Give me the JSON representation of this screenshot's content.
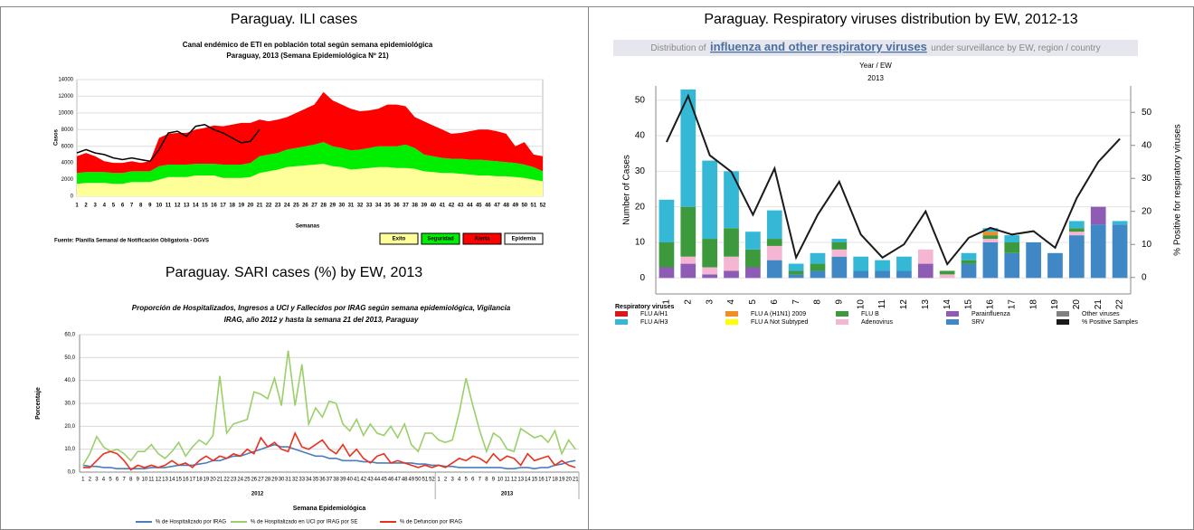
{
  "chart_data": [
    {
      "type": "area",
      "panel_title": "Paraguay. ILI cases",
      "title": "Canal endémico de ETI en población total según semana epidemiológica",
      "subtitle": "Paraguay, 2013 (Semana Epidemiológica Nº 21)",
      "y_label": "Casos",
      "x_label": "Semanas",
      "source": "Fuente: Planilla Semanal de Notificación Obligatoria - DGVS",
      "x": [
        1,
        2,
        3,
        4,
        5,
        6,
        7,
        8,
        9,
        10,
        11,
        12,
        13,
        14,
        15,
        16,
        17,
        18,
        19,
        20,
        21,
        22,
        23,
        24,
        25,
        26,
        27,
        28,
        29,
        30,
        31,
        32,
        33,
        34,
        35,
        36,
        37,
        38,
        39,
        40,
        41,
        42,
        43,
        44,
        45,
        46,
        47,
        48,
        49,
        50,
        51,
        52
      ],
      "ylim": [
        0,
        14000
      ],
      "yticks": [
        0,
        2000,
        4000,
        6000,
        8000,
        10000,
        12000,
        14000
      ],
      "grid": true,
      "series": [
        {
          "name": "Exito",
          "color": "#ffff99",
          "values": [
            1500,
            1600,
            1600,
            1600,
            1500,
            1500,
            1700,
            1700,
            1700,
            2000,
            2300,
            2300,
            2300,
            2500,
            2500,
            2500,
            2200,
            2200,
            2200,
            2300,
            2800,
            3000,
            3200,
            3500,
            3600,
            3700,
            3800,
            3900,
            3600,
            3500,
            3200,
            3300,
            3400,
            3500,
            3500,
            3400,
            3400,
            3300,
            3000,
            2900,
            2800,
            2800,
            2700,
            2600,
            2500,
            2500,
            2400,
            2400,
            2300,
            2200,
            2000,
            1800
          ]
        },
        {
          "name": "Seguridad",
          "color": "#00ee00",
          "values": [
            1300,
            1300,
            1300,
            1300,
            1300,
            1300,
            1300,
            1300,
            1300,
            1600,
            1500,
            1500,
            1500,
            1400,
            1400,
            1400,
            1600,
            1600,
            1600,
            1700,
            2000,
            2000,
            2000,
            2100,
            2200,
            2300,
            2400,
            2600,
            2400,
            2300,
            2300,
            2300,
            2400,
            2500,
            2500,
            2600,
            2800,
            2500,
            2000,
            1900,
            1800,
            1700,
            1800,
            1800,
            1900,
            1800,
            1800,
            1700,
            1700,
            1600,
            1500,
            1200
          ]
        },
        {
          "name": "Alerta",
          "color": "#ff0000",
          "values": [
            2000,
            2300,
            1900,
            1300,
            1200,
            1200,
            1200,
            1000,
            1200,
            3400,
            3700,
            3800,
            3800,
            4100,
            4300,
            4600,
            4600,
            4800,
            5000,
            4800,
            4400,
            4000,
            4000,
            3900,
            4200,
            4500,
            4800,
            6000,
            5500,
            5200,
            5000,
            4600,
            4500,
            4500,
            5000,
            5000,
            4600,
            3700,
            4000,
            3700,
            3400,
            3000,
            3100,
            3400,
            3600,
            3700,
            3600,
            3400,
            2000,
            2700,
            1500,
            1800
          ]
        },
        {
          "name": "Epidemia",
          "color": "#000000",
          "type": "line",
          "values": [
            5200,
            5600,
            5200,
            5000,
            4600,
            4400,
            4600,
            4400,
            4200,
            5600,
            7600,
            7800,
            7200,
            8400,
            8600,
            8000,
            7600,
            7000,
            6400,
            6600,
            8000,
            null,
            null,
            null,
            null,
            null,
            null,
            null,
            null,
            null,
            null,
            null,
            null,
            null,
            null,
            null,
            null,
            null,
            null,
            null,
            null,
            null,
            null,
            null,
            null,
            null,
            null,
            null,
            null,
            null,
            null,
            null
          ]
        }
      ]
    },
    {
      "type": "line",
      "panel_title": "Paraguay. SARI cases (%)  by EW, 2013",
      "title": [
        "Proporción de Hospitalizados, Ingresos a UCI y Fallecidos por IRAG según semana epidemiológica, Vigilancia",
        "IRAG, año 2012 y hasta la semana 21 del 2013, Paraguay"
      ],
      "y_label": "Porcentaje",
      "x_label": "Semana Epidemiológica",
      "categories": [
        1,
        2,
        3,
        4,
        5,
        6,
        7,
        8,
        9,
        10,
        11,
        12,
        13,
        14,
        15,
        16,
        17,
        18,
        19,
        20,
        21,
        22,
        23,
        24,
        25,
        26,
        27,
        28,
        29,
        30,
        31,
        32,
        33,
        34,
        35,
        36,
        37,
        38,
        39,
        40,
        41,
        42,
        43,
        44,
        45,
        46,
        47,
        48,
        49,
        50,
        51,
        52,
        1,
        2,
        3,
        4,
        5,
        6,
        7,
        8,
        9,
        10,
        11,
        12,
        13,
        14,
        15,
        16,
        17,
        18,
        19,
        20,
        21
      ],
      "category_groups": [
        "2012",
        "2013"
      ],
      "ylim": [
        0,
        60
      ],
      "yticks": [
        {
          "value": 0,
          "label": "0,0"
        },
        {
          "value": 10,
          "label": "10,0"
        },
        {
          "value": 20,
          "label": "20,0"
        },
        {
          "value": 30,
          "label": "30,0"
        },
        {
          "value": 40,
          "label": "40,0"
        },
        {
          "value": 50,
          "label": "50,0"
        },
        {
          "value": 60,
          "label": "60,0"
        }
      ],
      "grid": true,
      "series": [
        {
          "name": "% de Hospitalizado por IRAG",
          "color": "#4a7ebb",
          "values": [
            3,
            2.5,
            2.5,
            2,
            2,
            1.5,
            1.5,
            1.5,
            1.5,
            1.5,
            2,
            2,
            2,
            2.5,
            3,
            3,
            3,
            3.5,
            4,
            5,
            5,
            6,
            7,
            7,
            8,
            9,
            10,
            11,
            12,
            11,
            11,
            10,
            9,
            8,
            7,
            7,
            6,
            6,
            5,
            5,
            5,
            4.5,
            4.5,
            4,
            4,
            4,
            4,
            4,
            4,
            3.5,
            3.5,
            3,
            3,
            2.5,
            2.5,
            2,
            2,
            2,
            2,
            2,
            2,
            2,
            1.5,
            1.5,
            2,
            2,
            1.5,
            2,
            2,
            3,
            3.5,
            4.5,
            5
          ]
        },
        {
          "name": "% de Hospitalizado en UCI por IRAG por SE",
          "color": "#9bcf6a",
          "values": [
            3,
            8,
            15.5,
            11,
            9,
            10,
            8,
            5,
            9,
            9,
            12,
            8,
            6,
            9,
            13,
            7,
            11,
            14,
            12,
            16,
            42,
            17,
            21,
            22,
            23,
            35,
            34,
            32,
            41,
            29,
            53,
            29,
            47,
            21,
            28,
            24,
            31,
            30,
            21,
            18,
            23,
            16,
            21,
            17,
            16,
            20,
            15,
            21,
            12,
            9,
            17,
            17,
            14,
            13,
            14,
            26,
            41,
            29,
            18,
            9,
            17,
            15,
            10,
            9,
            19,
            17,
            15,
            16,
            13,
            18,
            8,
            14,
            10
          ]
        },
        {
          "name": "% de Defuncion por IRAG",
          "color": "#e8321e",
          "values": [
            2,
            2,
            5,
            8,
            9,
            8,
            5,
            1,
            3,
            2,
            3,
            2,
            3,
            5,
            3,
            4,
            2,
            5,
            7,
            5,
            7,
            6,
            8,
            7,
            10,
            8,
            15,
            11,
            13,
            10,
            9,
            17,
            11,
            10,
            12,
            14,
            10,
            8,
            12,
            7,
            10,
            6,
            4,
            7,
            8,
            4,
            5,
            4,
            3,
            2,
            3,
            2,
            3,
            2,
            4,
            6,
            5,
            7,
            6,
            4,
            8,
            5,
            7,
            6,
            3,
            8,
            5,
            6,
            7,
            3,
            5,
            3,
            2
          ]
        }
      ]
    },
    {
      "type": "bar",
      "stacked": true,
      "panel_title": "Paraguay. Respiratory viruses distribution by EW, 2012-13",
      "header_prefix": "Distribution of",
      "header_link": "influenza and other respiratory viruses",
      "header_suffix": "under surveillance by EW, region / country",
      "x_header": "Year / EW",
      "year": "2013",
      "y_label": "Number of Cases",
      "y2_label": "% Positive for respiratory viruses",
      "legend_title": "Respiratory viruses",
      "categories": [
        1,
        2,
        3,
        4,
        5,
        6,
        7,
        8,
        9,
        10,
        11,
        12,
        13,
        14,
        15,
        16,
        17,
        18,
        19,
        20,
        21,
        22
      ],
      "ylim": [
        -4.5,
        54
      ],
      "yticks": [
        0,
        10,
        20,
        30,
        40,
        50
      ],
      "y2lim": [
        -5,
        58
      ],
      "y2ticks": [
        0,
        10,
        20,
        30,
        40,
        50
      ],
      "grid": true,
      "series": [
        {
          "name": "FLU A/H1",
          "color": "#d7191c",
          "values": [
            0,
            0,
            0,
            0,
            0,
            0,
            0,
            0,
            0,
            0,
            0,
            0,
            0,
            0,
            0,
            0,
            0,
            0,
            0,
            0,
            0,
            0
          ]
        },
        {
          "name": "FLU A/H3",
          "color": "#35b7d6",
          "values": [
            12,
            33,
            22,
            16,
            5,
            8,
            2,
            3,
            1,
            4,
            3,
            4,
            0,
            0,
            2,
            1,
            2,
            0,
            0,
            2,
            0,
            1
          ]
        },
        {
          "name": "FLU A (H1N1) 2009",
          "color": "#f28c28",
          "values": [
            0,
            0,
            0,
            0,
            0,
            0,
            0,
            0,
            0,
            0,
            0,
            0,
            0,
            0,
            0,
            1,
            0,
            0,
            0,
            0,
            0,
            0
          ]
        },
        {
          "name": "FLU A Not Subtyped",
          "color": "#ffff00",
          "values": [
            0,
            0,
            0,
            0,
            0,
            0,
            0,
            0,
            0,
            0,
            0,
            0,
            0,
            0,
            0,
            0,
            0,
            0,
            0,
            0,
            0,
            0
          ]
        },
        {
          "name": "FLU B",
          "color": "#3c9a3c",
          "values": [
            7,
            14,
            8,
            8,
            5,
            2,
            1,
            2,
            2,
            0,
            0,
            0,
            0,
            1,
            1,
            1,
            3,
            0,
            0,
            1,
            0,
            0
          ]
        },
        {
          "name": "Adenovirus",
          "color": "#f4b6d2",
          "values": [
            0,
            2,
            2,
            4,
            0,
            4,
            0,
            0,
            2,
            0,
            0,
            0,
            4,
            1,
            0,
            1,
            0,
            0,
            0,
            1,
            0,
            0
          ]
        },
        {
          "name": "Parainfluenza",
          "color": "#8e5bb5",
          "values": [
            3,
            4,
            1,
            2,
            3,
            0,
            0,
            0,
            0,
            0,
            0,
            0,
            4,
            0,
            0,
            0,
            0,
            0,
            0,
            0,
            5,
            0
          ]
        },
        {
          "name": "SRV",
          "color": "#3f88c5",
          "values": [
            0,
            0,
            0,
            0,
            0,
            5,
            1,
            2,
            6,
            2,
            2,
            2,
            0,
            0,
            4,
            10,
            7,
            10,
            7,
            12,
            15,
            15
          ]
        },
        {
          "name": "Other viruses",
          "color": "#808080",
          "values": [
            0,
            0,
            0,
            0,
            0,
            0,
            0,
            0,
            0,
            0,
            0,
            0,
            0,
            0,
            0,
            0,
            0,
            0,
            0,
            0,
            0,
            0
          ]
        },
        {
          "name": "% Positive Samples",
          "color": "#1a1a1a",
          "type": "line",
          "axis": "y2",
          "values": [
            41,
            55,
            37,
            32,
            19,
            33,
            6,
            19,
            29,
            13,
            6,
            10,
            20,
            4,
            12,
            15,
            13,
            14,
            9,
            24,
            35,
            42
          ]
        }
      ]
    }
  ]
}
